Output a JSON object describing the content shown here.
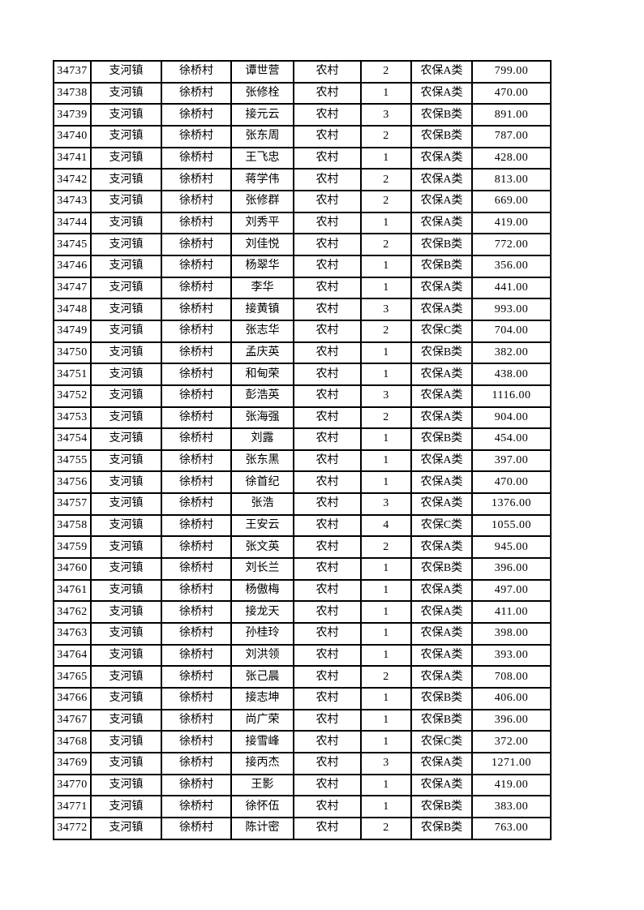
{
  "document": {
    "background_color": "#ffffff",
    "table": {
      "border_color": "#000000",
      "columns": [
        "serial",
        "town",
        "village",
        "name",
        "residence",
        "count",
        "category",
        "amount"
      ],
      "rows": [
        {
          "serial": "34737",
          "town": "支河镇",
          "village": "徐桥村",
          "name": "谭世营",
          "residence": "农村",
          "count": "2",
          "category": "农保A类",
          "amount": "799.00"
        },
        {
          "serial": "34738",
          "town": "支河镇",
          "village": "徐桥村",
          "name": "张修栓",
          "residence": "农村",
          "count": "1",
          "category": "农保A类",
          "amount": "470.00"
        },
        {
          "serial": "34739",
          "town": "支河镇",
          "village": "徐桥村",
          "name": "接元云",
          "residence": "农村",
          "count": "3",
          "category": "农保B类",
          "amount": "891.00"
        },
        {
          "serial": "34740",
          "town": "支河镇",
          "village": "徐桥村",
          "name": "张东周",
          "residence": "农村",
          "count": "2",
          "category": "农保B类",
          "amount": "787.00"
        },
        {
          "serial": "34741",
          "town": "支河镇",
          "village": "徐桥村",
          "name": "王飞忠",
          "residence": "农村",
          "count": "1",
          "category": "农保A类",
          "amount": "428.00"
        },
        {
          "serial": "34742",
          "town": "支河镇",
          "village": "徐桥村",
          "name": "蒋学伟",
          "residence": "农村",
          "count": "2",
          "category": "农保A类",
          "amount": "813.00"
        },
        {
          "serial": "34743",
          "town": "支河镇",
          "village": "徐桥村",
          "name": "张修群",
          "residence": "农村",
          "count": "2",
          "category": "农保A类",
          "amount": "669.00"
        },
        {
          "serial": "34744",
          "town": "支河镇",
          "village": "徐桥村",
          "name": "刘秀平",
          "residence": "农村",
          "count": "1",
          "category": "农保A类",
          "amount": "419.00"
        },
        {
          "serial": "34745",
          "town": "支河镇",
          "village": "徐桥村",
          "name": "刘佳悦",
          "residence": "农村",
          "count": "2",
          "category": "农保B类",
          "amount": "772.00"
        },
        {
          "serial": "34746",
          "town": "支河镇",
          "village": "徐桥村",
          "name": "杨翠华",
          "residence": "农村",
          "count": "1",
          "category": "农保B类",
          "amount": "356.00"
        },
        {
          "serial": "34747",
          "town": "支河镇",
          "village": "徐桥村",
          "name": "李华",
          "residence": "农村",
          "count": "1",
          "category": "农保A类",
          "amount": "441.00"
        },
        {
          "serial": "34748",
          "town": "支河镇",
          "village": "徐桥村",
          "name": "接黄镇",
          "residence": "农村",
          "count": "3",
          "category": "农保A类",
          "amount": "993.00"
        },
        {
          "serial": "34749",
          "town": "支河镇",
          "village": "徐桥村",
          "name": "张志华",
          "residence": "农村",
          "count": "2",
          "category": "农保C类",
          "amount": "704.00"
        },
        {
          "serial": "34750",
          "town": "支河镇",
          "village": "徐桥村",
          "name": "孟庆英",
          "residence": "农村",
          "count": "1",
          "category": "农保B类",
          "amount": "382.00"
        },
        {
          "serial": "34751",
          "town": "支河镇",
          "village": "徐桥村",
          "name": "和甸荣",
          "residence": "农村",
          "count": "1",
          "category": "农保A类",
          "amount": "438.00"
        },
        {
          "serial": "34752",
          "town": "支河镇",
          "village": "徐桥村",
          "name": "彭浩英",
          "residence": "农村",
          "count": "3",
          "category": "农保A类",
          "amount": "1116.00"
        },
        {
          "serial": "34753",
          "town": "支河镇",
          "village": "徐桥村",
          "name": "张海强",
          "residence": "农村",
          "count": "2",
          "category": "农保A类",
          "amount": "904.00"
        },
        {
          "serial": "34754",
          "town": "支河镇",
          "village": "徐桥村",
          "name": "刘露",
          "residence": "农村",
          "count": "1",
          "category": "农保B类",
          "amount": "454.00"
        },
        {
          "serial": "34755",
          "town": "支河镇",
          "village": "徐桥村",
          "name": "张东黑",
          "residence": "农村",
          "count": "1",
          "category": "农保A类",
          "amount": "397.00"
        },
        {
          "serial": "34756",
          "town": "支河镇",
          "village": "徐桥村",
          "name": "徐首纪",
          "residence": "农村",
          "count": "1",
          "category": "农保A类",
          "amount": "470.00"
        },
        {
          "serial": "34757",
          "town": "支河镇",
          "village": "徐桥村",
          "name": "张浩",
          "residence": "农村",
          "count": "3",
          "category": "农保A类",
          "amount": "1376.00"
        },
        {
          "serial": "34758",
          "town": "支河镇",
          "village": "徐桥村",
          "name": "王安云",
          "residence": "农村",
          "count": "4",
          "category": "农保C类",
          "amount": "1055.00"
        },
        {
          "serial": "34759",
          "town": "支河镇",
          "village": "徐桥村",
          "name": "张文英",
          "residence": "农村",
          "count": "2",
          "category": "农保A类",
          "amount": "945.00"
        },
        {
          "serial": "34760",
          "town": "支河镇",
          "village": "徐桥村",
          "name": "刘长兰",
          "residence": "农村",
          "count": "1",
          "category": "农保B类",
          "amount": "396.00"
        },
        {
          "serial": "34761",
          "town": "支河镇",
          "village": "徐桥村",
          "name": "杨傲梅",
          "residence": "农村",
          "count": "1",
          "category": "农保A类",
          "amount": "497.00"
        },
        {
          "serial": "34762",
          "town": "支河镇",
          "village": "徐桥村",
          "name": "接龙天",
          "residence": "农村",
          "count": "1",
          "category": "农保A类",
          "amount": "411.00"
        },
        {
          "serial": "34763",
          "town": "支河镇",
          "village": "徐桥村",
          "name": "孙桂玲",
          "residence": "农村",
          "count": "1",
          "category": "农保A类",
          "amount": "398.00"
        },
        {
          "serial": "34764",
          "town": "支河镇",
          "village": "徐桥村",
          "name": "刘洪领",
          "residence": "农村",
          "count": "1",
          "category": "农保A类",
          "amount": "393.00"
        },
        {
          "serial": "34765",
          "town": "支河镇",
          "village": "徐桥村",
          "name": "张己晨",
          "residence": "农村",
          "count": "2",
          "category": "农保A类",
          "amount": "708.00"
        },
        {
          "serial": "34766",
          "town": "支河镇",
          "village": "徐桥村",
          "name": "接志坤",
          "residence": "农村",
          "count": "1",
          "category": "农保B类",
          "amount": "406.00"
        },
        {
          "serial": "34767",
          "town": "支河镇",
          "village": "徐桥村",
          "name": "尚广荣",
          "residence": "农村",
          "count": "1",
          "category": "农保B类",
          "amount": "396.00"
        },
        {
          "serial": "34768",
          "town": "支河镇",
          "village": "徐桥村",
          "name": "接雪峰",
          "residence": "农村",
          "count": "1",
          "category": "农保C类",
          "amount": "372.00"
        },
        {
          "serial": "34769",
          "town": "支河镇",
          "village": "徐桥村",
          "name": "接丙杰",
          "residence": "农村",
          "count": "3",
          "category": "农保A类",
          "amount": "1271.00"
        },
        {
          "serial": "34770",
          "town": "支河镇",
          "village": "徐桥村",
          "name": "王影",
          "residence": "农村",
          "count": "1",
          "category": "农保A类",
          "amount": "419.00"
        },
        {
          "serial": "34771",
          "town": "支河镇",
          "village": "徐桥村",
          "name": "徐怀伍",
          "residence": "农村",
          "count": "1",
          "category": "农保B类",
          "amount": "383.00"
        },
        {
          "serial": "34772",
          "town": "支河镇",
          "village": "徐桥村",
          "name": "陈计密",
          "residence": "农村",
          "count": "2",
          "category": "农保B类",
          "amount": "763.00"
        }
      ]
    }
  }
}
